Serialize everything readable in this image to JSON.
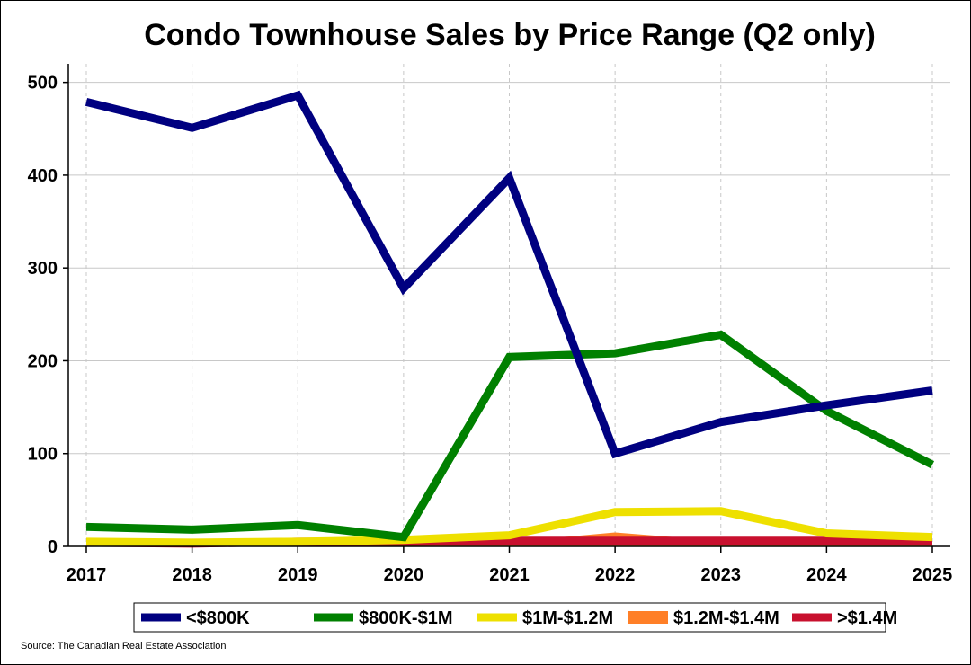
{
  "chart_data": {
    "type": "line",
    "title": "Condo Townhouse Sales by Price Range (Q2 only)",
    "x": [
      2017,
      2018,
      2019,
      2020,
      2021,
      2022,
      2023,
      2024,
      2025
    ],
    "xticks": [
      "2017",
      "2018",
      "2019",
      "2020",
      "2021",
      "2022",
      "2023",
      "2024",
      "2025"
    ],
    "ylim": [
      0,
      520
    ],
    "yticks": [
      0,
      100,
      200,
      300,
      400,
      500
    ],
    "grid": true,
    "legend_position": "bottom",
    "source": "Source: The Canadian Real Estate Association",
    "series": [
      {
        "name": "<$800K",
        "color": "#000080",
        "kind": "line",
        "values": [
          479,
          451,
          486,
          278,
          397,
          100,
          134,
          152,
          168
        ]
      },
      {
        "name": "$800K-$1M",
        "color": "#008000",
        "kind": "line",
        "values": [
          21,
          18,
          23,
          10,
          204,
          208,
          228,
          146,
          88
        ]
      },
      {
        "name": "$1M-$1.2M",
        "color": "#eee000",
        "kind": "line",
        "values": [
          5,
          4,
          5,
          7,
          12,
          37,
          38,
          14,
          10
        ]
      },
      {
        "name": "$1.2M-$1.4M",
        "color": "#ff7f27",
        "kind": "area",
        "values": [
          2,
          1,
          2,
          3,
          5,
          15,
          6,
          4,
          3
        ]
      },
      {
        "name": ">$1.4M",
        "color": "#c8102e",
        "kind": "line",
        "values": [
          4,
          3,
          5,
          5,
          6,
          6,
          6,
          6,
          6
        ]
      }
    ]
  }
}
